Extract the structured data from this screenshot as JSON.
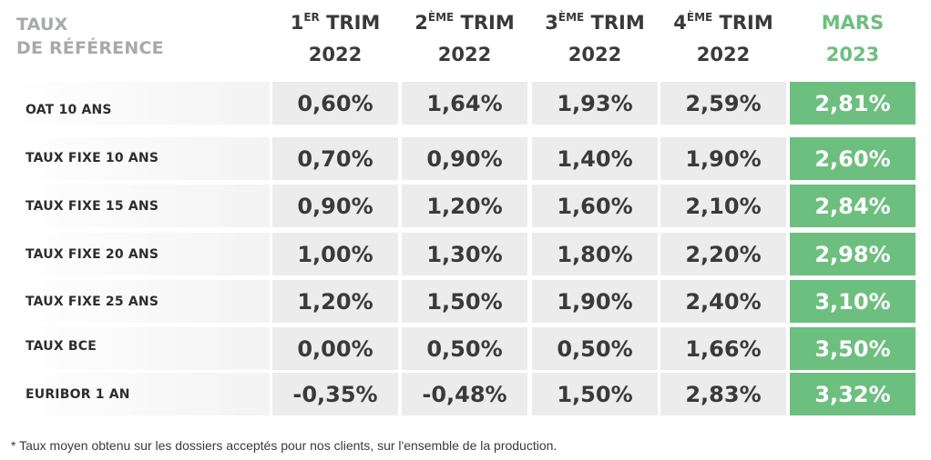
{
  "header": {
    "label_line1": "TAUX",
    "label_line2": "DE RÉFÉRENCE",
    "columns": [
      {
        "num": "1",
        "sup": "ER",
        "word": "TRIM",
        "year": "2022"
      },
      {
        "num": "2",
        "sup": "ÈME",
        "word": "TRIM",
        "year": "2022"
      },
      {
        "num": "3",
        "sup": "ÈME",
        "word": "TRIM",
        "year": "2022"
      },
      {
        "num": "4",
        "sup": "ÈME",
        "word": "TRIM",
        "year": "2022"
      },
      {
        "num": "",
        "sup": "",
        "word": "MARS",
        "year": "2023"
      }
    ]
  },
  "rows": [
    {
      "label": "OAT 10 ANS",
      "values": [
        "0,60%",
        "1,64%",
        "1,93%",
        "2,59%",
        "2,81%"
      ]
    },
    {
      "label": "TAUX FIXE 10 ANS",
      "values": [
        "0,70%",
        "0,90%",
        "1,40%",
        "1,90%",
        "2,60%"
      ]
    },
    {
      "label": "TAUX FIXE 15 ANS",
      "values": [
        "0,90%",
        "1,20%",
        "1,60%",
        "2,10%",
        "2,84%"
      ]
    },
    {
      "label": "TAUX FIXE 20 ANS",
      "values": [
        "1,00%",
        "1,30%",
        "1,80%",
        "2,20%",
        "2,98%"
      ]
    },
    {
      "label": "TAUX FIXE 25 ANS",
      "values": [
        "1,20%",
        "1,50%",
        "1,90%",
        "2,40%",
        "3,10%"
      ]
    },
    {
      "label": "TAUX BCE",
      "values": [
        "0,00%",
        "0,50%",
        "0,50%",
        "1,66%",
        "3,50%"
      ]
    },
    {
      "label": "EURIBOR 1 AN",
      "values": [
        "-0,35%",
        "-0,48%",
        "1,50%",
        "2,83%",
        "3,32%"
      ]
    }
  ],
  "footnote": "* Taux moyen obtenu sur les dossiers acceptés pour nos clients, sur l'ensemble de la production.",
  "colors": {
    "highlight": "#6dbf7f",
    "cell_bg": "#ececec",
    "header_grey": "#a7a9ac",
    "text": "#3a3a3a"
  }
}
